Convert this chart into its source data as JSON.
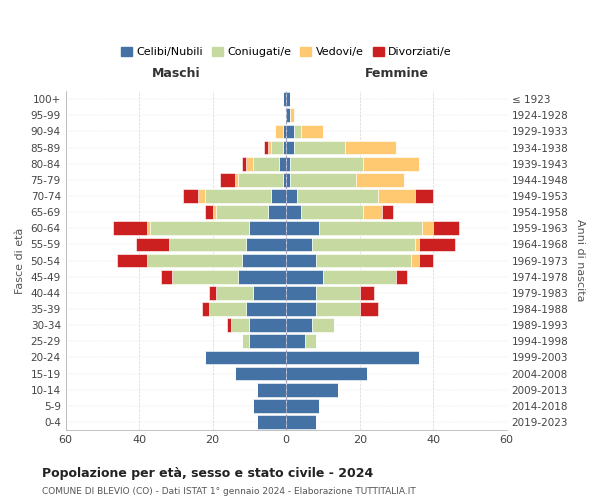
{
  "age_groups": [
    "0-4",
    "5-9",
    "10-14",
    "15-19",
    "20-24",
    "25-29",
    "30-34",
    "35-39",
    "40-44",
    "45-49",
    "50-54",
    "55-59",
    "60-64",
    "65-69",
    "70-74",
    "75-79",
    "80-84",
    "85-89",
    "90-94",
    "95-99",
    "100+"
  ],
  "birth_years": [
    "2019-2023",
    "2014-2018",
    "2009-2013",
    "2004-2008",
    "1999-2003",
    "1994-1998",
    "1989-1993",
    "1984-1988",
    "1979-1983",
    "1974-1978",
    "1969-1973",
    "1964-1968",
    "1959-1963",
    "1954-1958",
    "1949-1953",
    "1944-1948",
    "1939-1943",
    "1934-1938",
    "1929-1933",
    "1924-1928",
    "≤ 1923"
  ],
  "colors": {
    "celibi": "#4472a4",
    "coniugati": "#c5d9a0",
    "vedovi": "#ffc972",
    "divorziati": "#cc2020"
  },
  "males": {
    "celibi": [
      8,
      9,
      8,
      14,
      22,
      10,
      10,
      11,
      9,
      13,
      12,
      11,
      10,
      5,
      4,
      1,
      2,
      1,
      1,
      0,
      1
    ],
    "coniugati": [
      0,
      0,
      0,
      0,
      0,
      2,
      5,
      10,
      10,
      18,
      26,
      21,
      27,
      14,
      18,
      12,
      7,
      3,
      0,
      0,
      0
    ],
    "vedovi": [
      0,
      0,
      0,
      0,
      0,
      0,
      0,
      0,
      0,
      0,
      0,
      0,
      1,
      1,
      2,
      1,
      2,
      1,
      2,
      0,
      0
    ],
    "divorziati": [
      0,
      0,
      0,
      0,
      0,
      0,
      1,
      2,
      2,
      3,
      8,
      9,
      9,
      2,
      4,
      4,
      1,
      1,
      0,
      0,
      0
    ]
  },
  "females": {
    "celibi": [
      8,
      9,
      14,
      22,
      36,
      5,
      7,
      8,
      8,
      10,
      8,
      7,
      9,
      4,
      3,
      1,
      1,
      2,
      2,
      1,
      1
    ],
    "coniugati": [
      0,
      0,
      0,
      0,
      0,
      3,
      6,
      12,
      12,
      20,
      26,
      28,
      28,
      17,
      22,
      18,
      20,
      14,
      2,
      0,
      0
    ],
    "vedovi": [
      0,
      0,
      0,
      0,
      0,
      0,
      0,
      0,
      0,
      0,
      2,
      1,
      3,
      5,
      10,
      13,
      15,
      14,
      6,
      1,
      0
    ],
    "divorziati": [
      0,
      0,
      0,
      0,
      0,
      0,
      0,
      5,
      4,
      3,
      4,
      10,
      7,
      3,
      5,
      0,
      0,
      0,
      0,
      0,
      0
    ]
  },
  "xlim": 60,
  "title": "Popolazione per età, sesso e stato civile - 2024",
  "subtitle": "COMUNE DI BLEVIO (CO) - Dati ISTAT 1° gennaio 2024 - Elaborazione TUTTITALIA.IT",
  "xlabel_left": "Maschi",
  "xlabel_right": "Femmine",
  "ylabel_left": "Fasce di età",
  "ylabel_right": "Anni di nascita",
  "legend_labels": [
    "Celibi/Nubili",
    "Coniugati/e",
    "Vedovi/e",
    "Divorziati/e"
  ],
  "background_color": "#ffffff",
  "grid_color": "#cccccc"
}
